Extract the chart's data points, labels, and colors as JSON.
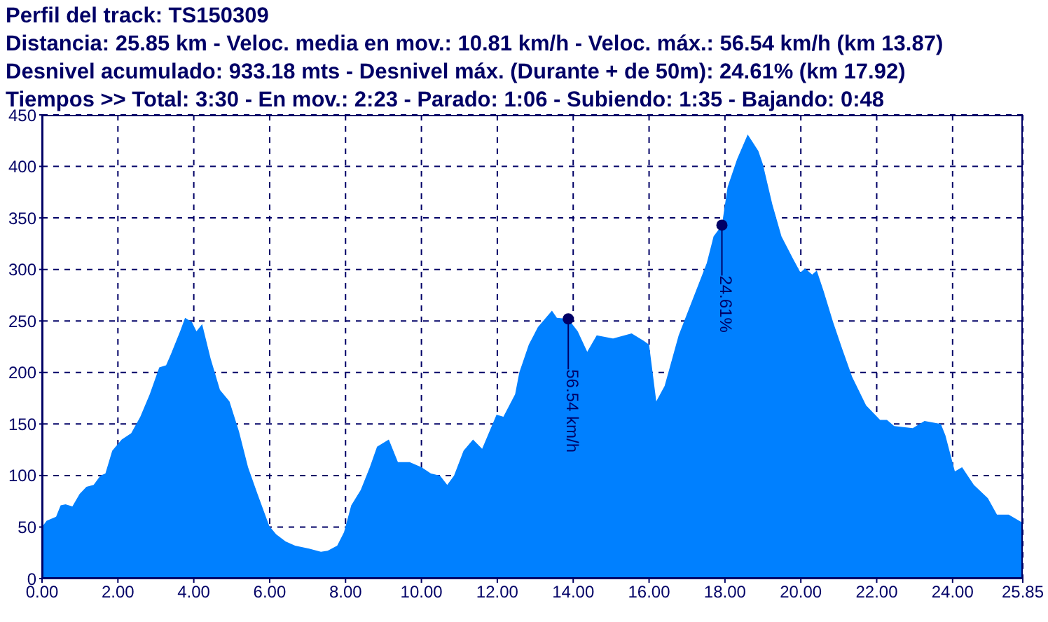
{
  "chart_data": {
    "type": "area",
    "title": "Perfil del track: TS150309",
    "annotations": [
      "Distancia: 25.85 km - Veloc. media en mov.: 10.81 km/h - Veloc. máx.: 56.54 km/h (km 13.87)",
      "Desnivel acumulado: 933.18 mts - Desnivel máx. (Durante + de 50m): 24.61% (km 17.92)",
      "Tiempos >> Total: 3:30 - En mov.: 2:23 - Parado: 1:06 - Subiendo: 1:35 - Bajando: 0:48",
      {
        "text": "56.54 km/h",
        "x": 13.87,
        "y": 252
      },
      {
        "text": "24.61%",
        "x": 17.92,
        "y": 343
      }
    ],
    "x": [
      0,
      0.12,
      0.37,
      0.49,
      0.62,
      0.8,
      0.99,
      1.17,
      1.36,
      1.54,
      1.67,
      1.85,
      2.1,
      2.35,
      2.59,
      2.84,
      3.09,
      3.27,
      3.4,
      3.64,
      3.77,
      3.95,
      4.07,
      4.22,
      4.44,
      4.69,
      4.94,
      5.19,
      5.43,
      5.68,
      5.99,
      6.17,
      6.42,
      6.67,
      7.04,
      7.35,
      7.53,
      7.78,
      7.96,
      8.15,
      8.4,
      8.64,
      8.83,
      9.14,
      9.38,
      9.69,
      10.0,
      10.25,
      10.49,
      10.68,
      10.86,
      11.11,
      11.36,
      11.6,
      11.98,
      12.16,
      12.47,
      12.58,
      12.83,
      13.07,
      13.44,
      13.57,
      13.87,
      14.12,
      14.37,
      14.62,
      15.05,
      15.54,
      15.85,
      16.0,
      16.19,
      16.41,
      16.78,
      17.15,
      17.52,
      17.7,
      17.92,
      18.07,
      18.32,
      18.6,
      18.88,
      19.0,
      19.25,
      19.49,
      19.8,
      19.99,
      20.11,
      20.3,
      20.42,
      20.6,
      20.85,
      21.1,
      21.35,
      21.72,
      22.09,
      22.27,
      22.46,
      22.95,
      23.26,
      23.69,
      23.81,
      24.06,
      24.25,
      24.56,
      24.93,
      25.17,
      25.48,
      25.85
    ],
    "series": [
      {
        "color": "#0080ff",
        "values": [
          50,
          56,
          60,
          71,
          72,
          70,
          82,
          89,
          91,
          100,
          102,
          124,
          135,
          141,
          157,
          179,
          205,
          207,
          218,
          240,
          253,
          249,
          240,
          247,
          214,
          183,
          172,
          143,
          108,
          82,
          51,
          43,
          36,
          32,
          29,
          26,
          27,
          32,
          45,
          71,
          86,
          108,
          128,
          135,
          113,
          113,
          108,
          102,
          100,
          91,
          100,
          124,
          135,
          126,
          159,
          157,
          179,
          200,
          227,
          244,
          260,
          253,
          252,
          240,
          220,
          236,
          233,
          238,
          231,
          227,
          172,
          187,
          236,
          271,
          306,
          332,
          343,
          380,
          407,
          431,
          415,
          402,
          363,
          332,
          310,
          297,
          301,
          295,
          299,
          279,
          249,
          222,
          196,
          168,
          154,
          154,
          148,
          146,
          153,
          150,
          139,
          104,
          108,
          91,
          78,
          62,
          62,
          54
        ]
      }
    ],
    "xlim": [
      0,
      25.85
    ],
    "xticks": [
      {
        "value": 0,
        "label": "0.00"
      },
      {
        "value": 2,
        "label": "2.00"
      },
      {
        "value": 4,
        "label": "4.00"
      },
      {
        "value": 6,
        "label": "6.00"
      },
      {
        "value": 8,
        "label": "8.00"
      },
      {
        "value": 10,
        "label": "10.00"
      },
      {
        "value": 12,
        "label": "12.00"
      },
      {
        "value": 14,
        "label": "14.00"
      },
      {
        "value": 16,
        "label": "16.00"
      },
      {
        "value": 18,
        "label": "18.00"
      },
      {
        "value": 20,
        "label": "20.00"
      },
      {
        "value": 22,
        "label": "22.00"
      },
      {
        "value": 24,
        "label": "24.00"
      },
      25.85
    ],
    "ylim": [
      0,
      450
    ],
    "yticks": [
      0,
      50,
      100,
      150,
      200,
      250,
      300,
      350,
      400,
      450
    ],
    "grid": true
  }
}
